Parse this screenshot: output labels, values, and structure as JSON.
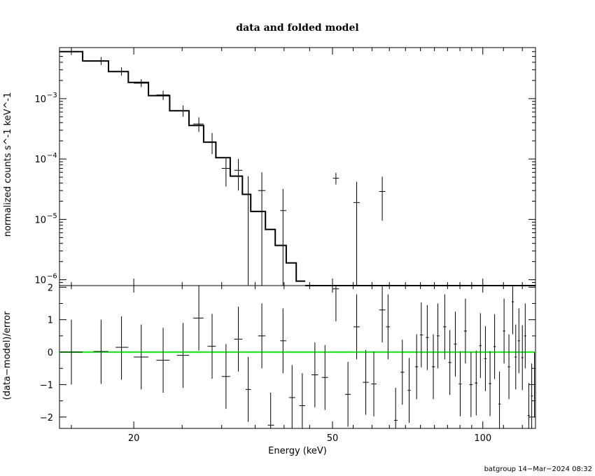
{
  "chart_data": [
    {
      "panel": "top",
      "type": "scatter",
      "title": "data and folded model",
      "ylabel": "normalized counts s^-1 keV^-1",
      "y_scale": "log",
      "xlim": [
        14.2,
        127.5
      ],
      "ylim": [
        8e-07,
        0.007
      ],
      "x_scale": "log",
      "ytick_labels": [
        {
          "value": 1e-06,
          "mantissa": "10",
          "exp": "−6"
        },
        {
          "value": 1e-05,
          "mantissa": "10",
          "exp": "−5"
        },
        {
          "value": 0.0001,
          "mantissa": "10",
          "exp": "−4"
        },
        {
          "value": 0.001,
          "mantissa": "10",
          "exp": "−3"
        }
      ],
      "data_points": [
        {
          "x": 15.0,
          "xlo": 14.2,
          "xhi": 15.8,
          "y": 0.006,
          "ylo": 0.0053,
          "yhi": 0.0068
        },
        {
          "x": 17.2,
          "xlo": 16.6,
          "xhi": 17.8,
          "y": 0.0042,
          "ylo": 0.0036,
          "yhi": 0.0049
        },
        {
          "x": 18.9,
          "xlo": 18.4,
          "xhi": 19.5,
          "y": 0.0028,
          "ylo": 0.0024,
          "yhi": 0.0033
        },
        {
          "x": 20.7,
          "xlo": 20.0,
          "xhi": 21.4,
          "y": 0.0018,
          "ylo": 0.00155,
          "yhi": 0.0021
        },
        {
          "x": 22.9,
          "xlo": 22.2,
          "xhi": 23.6,
          "y": 0.00115,
          "ylo": 0.00095,
          "yhi": 0.00135
        },
        {
          "x": 25.1,
          "xlo": 24.4,
          "xhi": 25.8,
          "y": 0.00063,
          "ylo": 0.0005,
          "yhi": 0.00077
        },
        {
          "x": 27.0,
          "xlo": 26.3,
          "xhi": 27.6,
          "y": 0.00038,
          "ylo": 0.00028,
          "yhi": 0.00049
        },
        {
          "x": 28.7,
          "xlo": 28.1,
          "xhi": 29.2,
          "y": 0.00019,
          "ylo": 0.00012,
          "yhi": 0.00027
        },
        {
          "x": 30.6,
          "xlo": 30.0,
          "xhi": 31.2,
          "y": 7e-05,
          "ylo": 3.5e-05,
          "yhi": 0.000105
        },
        {
          "x": 32.4,
          "xlo": 31.8,
          "xhi": 33.0,
          "y": 6.5e-05,
          "ylo": 3e-05,
          "yhi": 0.0001
        },
        {
          "x": 33.9,
          "xlo": 33.5,
          "xhi": 34.3,
          "y": 2.6e-05,
          "ylo": 8e-07,
          "yhi": 5.2e-05
        },
        {
          "x": 36.1,
          "xlo": 35.5,
          "xhi": 36.7,
          "y": 3e-05,
          "ylo": 8e-07,
          "yhi": 6e-05
        },
        {
          "x": 39.8,
          "xlo": 39.3,
          "xhi": 40.4,
          "y": 1.4e-05,
          "ylo": 8e-07,
          "yhi": 3.2e-05
        }
      ],
      "upper_points": [
        {
          "x": 50.8,
          "xlo": 50.1,
          "xhi": 51.5,
          "y": 4.8e-05,
          "ylo": 3.8e-05,
          "yhi": 5.9e-05
        },
        {
          "x": 55.9,
          "xlo": 55.1,
          "xhi": 56.7,
          "y": 1.9e-05,
          "ylo": 8e-07,
          "yhi": 4.2e-05
        },
        {
          "x": 62.9,
          "xlo": 62.0,
          "xhi": 63.8,
          "y": 2.9e-05,
          "ylo": 9.5e-06,
          "yhi": 5.1e-05
        }
      ],
      "model_steps": [
        {
          "x0": 14.2,
          "x1": 15.8,
          "y": 0.006
        },
        {
          "x0": 15.8,
          "x1": 17.8,
          "y": 0.0042
        },
        {
          "x0": 17.8,
          "x1": 19.5,
          "y": 0.0028
        },
        {
          "x0": 19.5,
          "x1": 21.4,
          "y": 0.00185
        },
        {
          "x0": 21.4,
          "x1": 23.6,
          "y": 0.00112
        },
        {
          "x0": 23.6,
          "x1": 25.8,
          "y": 0.00063
        },
        {
          "x0": 25.8,
          "x1": 27.6,
          "y": 0.00036
        },
        {
          "x0": 27.6,
          "x1": 29.2,
          "y": 0.00019
        },
        {
          "x0": 29.2,
          "x1": 31.2,
          "y": 0.000105
        },
        {
          "x0": 31.2,
          "x1": 33.0,
          "y": 5.2e-05
        },
        {
          "x0": 33.0,
          "x1": 34.3,
          "y": 2.6e-05
        },
        {
          "x0": 34.3,
          "x1": 36.7,
          "y": 1.35e-05
        },
        {
          "x0": 36.7,
          "x1": 38.4,
          "y": 6.8e-06
        },
        {
          "x0": 38.4,
          "x1": 40.4,
          "y": 3.7e-06
        },
        {
          "x0": 40.4,
          "x1": 42.3,
          "y": 1.9e-06
        },
        {
          "x0": 42.3,
          "x1": 44.1,
          "y": 9.5e-07
        }
      ]
    },
    {
      "panel": "bottom",
      "type": "scatter",
      "xlabel": "Energy (keV)",
      "ylabel": "(data−model)/error",
      "x_scale": "log",
      "xlim": [
        14.2,
        127.5
      ],
      "ylim": [
        -2.35,
        2.05
      ],
      "yticks": [
        -2,
        -1,
        0,
        1,
        2
      ],
      "ytick_labels": [
        "−2",
        "−1",
        "0",
        "1",
        "2"
      ],
      "xticks": [
        20,
        50,
        100
      ],
      "xtick_labels": [
        "20",
        "50",
        "100"
      ],
      "zero_line_color": "#00ff00",
      "points": [
        {
          "x": 15.0,
          "xlo": 14.2,
          "xhi": 15.8,
          "y": 0.0,
          "ylo": -1.0,
          "yhi": 1.0
        },
        {
          "x": 17.2,
          "xlo": 16.6,
          "xhi": 17.8,
          "y": 0.02,
          "ylo": -0.98,
          "yhi": 1.0
        },
        {
          "x": 18.9,
          "xlo": 18.4,
          "xhi": 19.5,
          "y": 0.15,
          "ylo": -0.85,
          "yhi": 1.1
        },
        {
          "x": 20.7,
          "xlo": 20.0,
          "xhi": 21.4,
          "y": -0.15,
          "ylo": -1.15,
          "yhi": 0.85
        },
        {
          "x": 22.9,
          "xlo": 22.2,
          "xhi": 23.6,
          "y": -0.25,
          "ylo": -1.25,
          "yhi": 0.75
        },
        {
          "x": 25.1,
          "xlo": 24.4,
          "xhi": 25.8,
          "y": -0.1,
          "ylo": -1.1,
          "yhi": 0.9
        },
        {
          "x": 27.0,
          "xlo": 26.3,
          "xhi": 27.6,
          "y": 1.05,
          "ylo": 0.05,
          "yhi": 2.05
        },
        {
          "x": 28.7,
          "xlo": 28.1,
          "xhi": 29.2,
          "y": 0.18,
          "ylo": -0.82,
          "yhi": 1.18
        },
        {
          "x": 30.6,
          "xlo": 30.0,
          "xhi": 31.2,
          "y": -0.75,
          "ylo": -1.75,
          "yhi": 0.25
        },
        {
          "x": 32.4,
          "xlo": 31.8,
          "xhi": 33.0,
          "y": 0.4,
          "ylo": -0.6,
          "yhi": 1.4
        },
        {
          "x": 33.9,
          "xlo": 33.5,
          "xhi": 34.3,
          "y": -1.15,
          "ylo": -2.15,
          "yhi": -0.15
        },
        {
          "x": 36.1,
          "xlo": 35.5,
          "xhi": 36.7,
          "y": 0.5,
          "ylo": -0.5,
          "yhi": 1.5
        },
        {
          "x": 37.6,
          "xlo": 37.1,
          "xhi": 38.2,
          "y": -2.25,
          "ylo": -2.35,
          "yhi": -1.25
        },
        {
          "x": 39.8,
          "xlo": 39.3,
          "xhi": 40.4,
          "y": 0.35,
          "ylo": -0.65,
          "yhi": 1.35
        },
        {
          "x": 41.5,
          "xlo": 40.9,
          "xhi": 42.1,
          "y": -1.4,
          "ylo": -2.35,
          "yhi": -0.4
        },
        {
          "x": 43.5,
          "xlo": 42.9,
          "xhi": 44.1,
          "y": -1.65,
          "ylo": -2.35,
          "yhi": -0.65
        },
        {
          "x": 46.1,
          "xlo": 45.4,
          "xhi": 46.8,
          "y": -0.7,
          "ylo": -1.7,
          "yhi": 0.3
        },
        {
          "x": 48.3,
          "xlo": 47.6,
          "xhi": 49.0,
          "y": -0.78,
          "ylo": -1.78,
          "yhi": 0.22
        },
        {
          "x": 50.8,
          "xlo": 50.1,
          "xhi": 51.5,
          "y": 1.95,
          "ylo": 0.95,
          "yhi": 2.05
        },
        {
          "x": 53.7,
          "xlo": 53.0,
          "xhi": 54.4,
          "y": -1.3,
          "ylo": -2.3,
          "yhi": -0.3
        },
        {
          "x": 55.9,
          "xlo": 55.1,
          "xhi": 56.7,
          "y": 0.78,
          "ylo": -0.22,
          "yhi": 1.78
        },
        {
          "x": 58.3,
          "xlo": 57.5,
          "xhi": 59.1,
          "y": -0.93,
          "ylo": -1.93,
          "yhi": 0.07
        },
        {
          "x": 60.5,
          "xlo": 59.8,
          "xhi": 61.3,
          "y": -0.98,
          "ylo": -1.98,
          "yhi": 0.02
        },
        {
          "x": 62.9,
          "xlo": 62.0,
          "xhi": 63.8,
          "y": 1.3,
          "ylo": 0.3,
          "yhi": 2.05
        },
        {
          "x": 64.6,
          "xlo": 64.0,
          "xhi": 65.2,
          "y": 0.78,
          "ylo": -0.22,
          "yhi": 1.78
        },
        {
          "x": 66.9,
          "xlo": 66.4,
          "xhi": 67.5,
          "y": -2.1,
          "ylo": -2.35,
          "yhi": -1.1
        },
        {
          "x": 69.0,
          "xlo": 68.4,
          "xhi": 69.6,
          "y": -0.62,
          "ylo": -1.62,
          "yhi": 0.38
        },
        {
          "x": 71.2,
          "xlo": 70.7,
          "xhi": 71.7,
          "y": -1.18,
          "ylo": -2.18,
          "yhi": -0.18
        },
        {
          "x": 73.7,
          "xlo": 73.2,
          "xhi": 74.2,
          "y": -0.45,
          "ylo": -1.45,
          "yhi": 0.55
        },
        {
          "x": 75.3,
          "xlo": 74.8,
          "xhi": 75.9,
          "y": 0.53,
          "ylo": -0.47,
          "yhi": 1.53
        },
        {
          "x": 77.4,
          "xlo": 76.9,
          "xhi": 78.0,
          "y": 0.45,
          "ylo": -0.55,
          "yhi": 1.45
        },
        {
          "x": 79.6,
          "xlo": 79.1,
          "xhi": 80.2,
          "y": -0.45,
          "ylo": -1.45,
          "yhi": 0.55
        },
        {
          "x": 81.3,
          "xlo": 80.8,
          "xhi": 81.9,
          "y": 0.5,
          "ylo": -0.5,
          "yhi": 1.5
        },
        {
          "x": 83.9,
          "xlo": 83.3,
          "xhi": 84.5,
          "y": 0.78,
          "ylo": -0.22,
          "yhi": 1.78
        },
        {
          "x": 85.9,
          "xlo": 85.3,
          "xhi": 86.5,
          "y": -0.32,
          "ylo": -1.32,
          "yhi": 0.68
        },
        {
          "x": 88.1,
          "xlo": 87.5,
          "xhi": 88.7,
          "y": 0.25,
          "ylo": -0.75,
          "yhi": 1.25
        },
        {
          "x": 90.1,
          "xlo": 89.5,
          "xhi": 90.7,
          "y": -0.98,
          "ylo": -1.98,
          "yhi": 0.02
        },
        {
          "x": 92.3,
          "xlo": 91.7,
          "xhi": 92.9,
          "y": 0.65,
          "ylo": -0.35,
          "yhi": 1.65
        },
        {
          "x": 94.7,
          "xlo": 94.0,
          "xhi": 95.4,
          "y": -1.0,
          "ylo": -2.0,
          "yhi": 0.0
        },
        {
          "x": 97.0,
          "xlo": 96.4,
          "xhi": 97.6,
          "y": -0.95,
          "ylo": -1.95,
          "yhi": 0.05
        },
        {
          "x": 98.9,
          "xlo": 98.3,
          "xhi": 99.5,
          "y": 0.2,
          "ylo": -0.8,
          "yhi": 1.2
        },
        {
          "x": 101.2,
          "xlo": 100.6,
          "xhi": 101.8,
          "y": -0.2,
          "ylo": -1.2,
          "yhi": 0.8
        },
        {
          "x": 103.4,
          "xlo": 102.8,
          "xhi": 104.0,
          "y": -0.97,
          "ylo": -1.97,
          "yhi": 0.03
        },
        {
          "x": 105.6,
          "xlo": 105.0,
          "xhi": 106.2,
          "y": 0.17,
          "ylo": -0.83,
          "yhi": 1.17
        },
        {
          "x": 108.0,
          "xlo": 107.4,
          "xhi": 108.6,
          "y": -1.6,
          "ylo": -2.35,
          "yhi": -0.6
        },
        {
          "x": 110.3,
          "xlo": 109.7,
          "xhi": 110.9,
          "y": 0.65,
          "ylo": -0.35,
          "yhi": 1.65
        },
        {
          "x": 112.8,
          "xlo": 112.2,
          "xhi": 113.4,
          "y": -0.45,
          "ylo": -1.45,
          "yhi": 0.55
        },
        {
          "x": 114.8,
          "xlo": 114.2,
          "xhi": 115.4,
          "y": 1.55,
          "ylo": 0.55,
          "yhi": 2.05
        },
        {
          "x": 116.4,
          "xlo": 115.8,
          "xhi": 117.0,
          "y": -0.15,
          "ylo": -1.15,
          "yhi": 0.85
        },
        {
          "x": 118.1,
          "xlo": 117.5,
          "xhi": 118.7,
          "y": 0.35,
          "ylo": -0.65,
          "yhi": 1.35
        },
        {
          "x": 120.0,
          "xlo": 119.4,
          "xhi": 120.6,
          "y": -0.17,
          "ylo": -1.17,
          "yhi": 0.83
        },
        {
          "x": 121.6,
          "xlo": 121.0,
          "xhi": 122.2,
          "y": 0.5,
          "ylo": -0.5,
          "yhi": 1.5
        },
        {
          "x": 123.6,
          "xlo": 123.0,
          "xhi": 124.2,
          "y": -1.95,
          "ylo": -2.35,
          "yhi": -0.95
        },
        {
          "x": 125.3,
          "xlo": 124.8,
          "xhi": 125.9,
          "y": -1.35,
          "ylo": -2.35,
          "yhi": -0.35
        },
        {
          "x": 126.9,
          "xlo": 126.4,
          "xhi": 127.5,
          "y": -1.0,
          "ylo": -2.0,
          "yhi": 0.0
        }
      ]
    }
  ],
  "footer": "batgroup 14−Mar−2024 08:32"
}
